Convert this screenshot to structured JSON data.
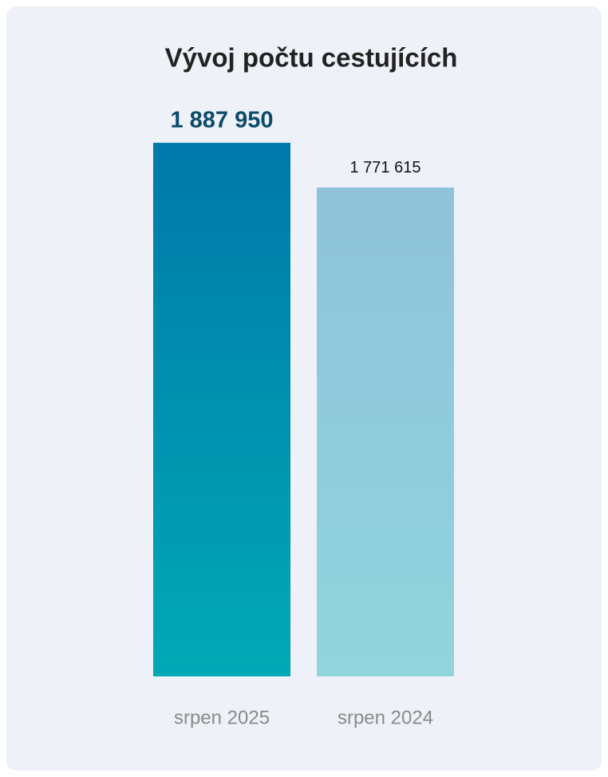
{
  "chart_data": {
    "type": "bar",
    "title": "Vývoj počtu cestujících",
    "categories": [
      "srpen 2025",
      "srpen 2024"
    ],
    "values": [
      1887950,
      1771615
    ],
    "value_labels": [
      "1 887 950",
      "1 771 615"
    ],
    "colors": [
      {
        "top": "#0079aa",
        "bottom": "#00a9b5"
      },
      {
        "top": "#8fc3db",
        "bottom": "#91d4dd"
      }
    ],
    "ylim": [
      500000,
      1900000
    ],
    "grid": false
  }
}
